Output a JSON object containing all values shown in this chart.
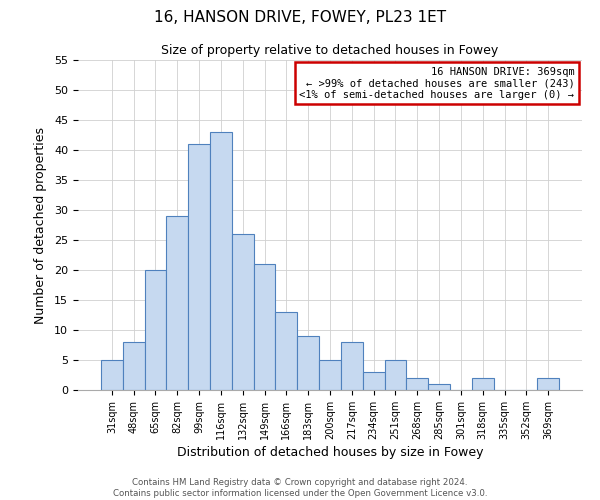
{
  "title": "16, HANSON DRIVE, FOWEY, PL23 1ET",
  "subtitle": "Size of property relative to detached houses in Fowey",
  "xlabel": "Distribution of detached houses by size in Fowey",
  "ylabel": "Number of detached properties",
  "bar_labels": [
    "31sqm",
    "48sqm",
    "65sqm",
    "82sqm",
    "99sqm",
    "116sqm",
    "132sqm",
    "149sqm",
    "166sqm",
    "183sqm",
    "200sqm",
    "217sqm",
    "234sqm",
    "251sqm",
    "268sqm",
    "285sqm",
    "301sqm",
    "318sqm",
    "335sqm",
    "352sqm",
    "369sqm"
  ],
  "bar_values": [
    5,
    8,
    20,
    29,
    41,
    43,
    26,
    21,
    13,
    9,
    5,
    8,
    3,
    5,
    2,
    1,
    0,
    2,
    0,
    0,
    2
  ],
  "bar_color": "#c6d9f0",
  "bar_edge_color": "#4f81bd",
  "ylim": [
    0,
    55
  ],
  "yticks": [
    0,
    5,
    10,
    15,
    20,
    25,
    30,
    35,
    40,
    45,
    50,
    55
  ],
  "annotation_title": "16 HANSON DRIVE: 369sqm",
  "annotation_line2": "← >99% of detached houses are smaller (243)",
  "annotation_line3": "<1% of semi-detached houses are larger (0) →",
  "annotation_box_color": "#ffffff",
  "annotation_box_edge": "#cc0000",
  "footer_line1": "Contains HM Land Registry data © Crown copyright and database right 2024.",
  "footer_line2": "Contains public sector information licensed under the Open Government Licence v3.0.",
  "background_color": "#ffffff",
  "grid_color": "#d0d0d0"
}
